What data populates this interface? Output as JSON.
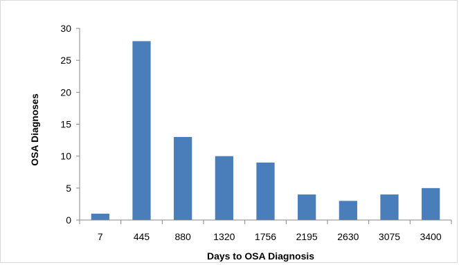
{
  "chart_data": {
    "type": "bar",
    "title": "",
    "xlabel": "Days to OSA Diagnosis",
    "ylabel": "OSA Diagnoses",
    "categories": [
      "7",
      "445",
      "880",
      "1320",
      "1756",
      "2195",
      "2630",
      "3075",
      "3400"
    ],
    "values": [
      1,
      28,
      13,
      10,
      9,
      4,
      3,
      4,
      5
    ],
    "ylim": [
      0,
      30
    ],
    "yticks": [
      0,
      5,
      10,
      15,
      20,
      25,
      30
    ],
    "grid": false,
    "legend": "none",
    "bar_color": "#4a7ebb"
  }
}
